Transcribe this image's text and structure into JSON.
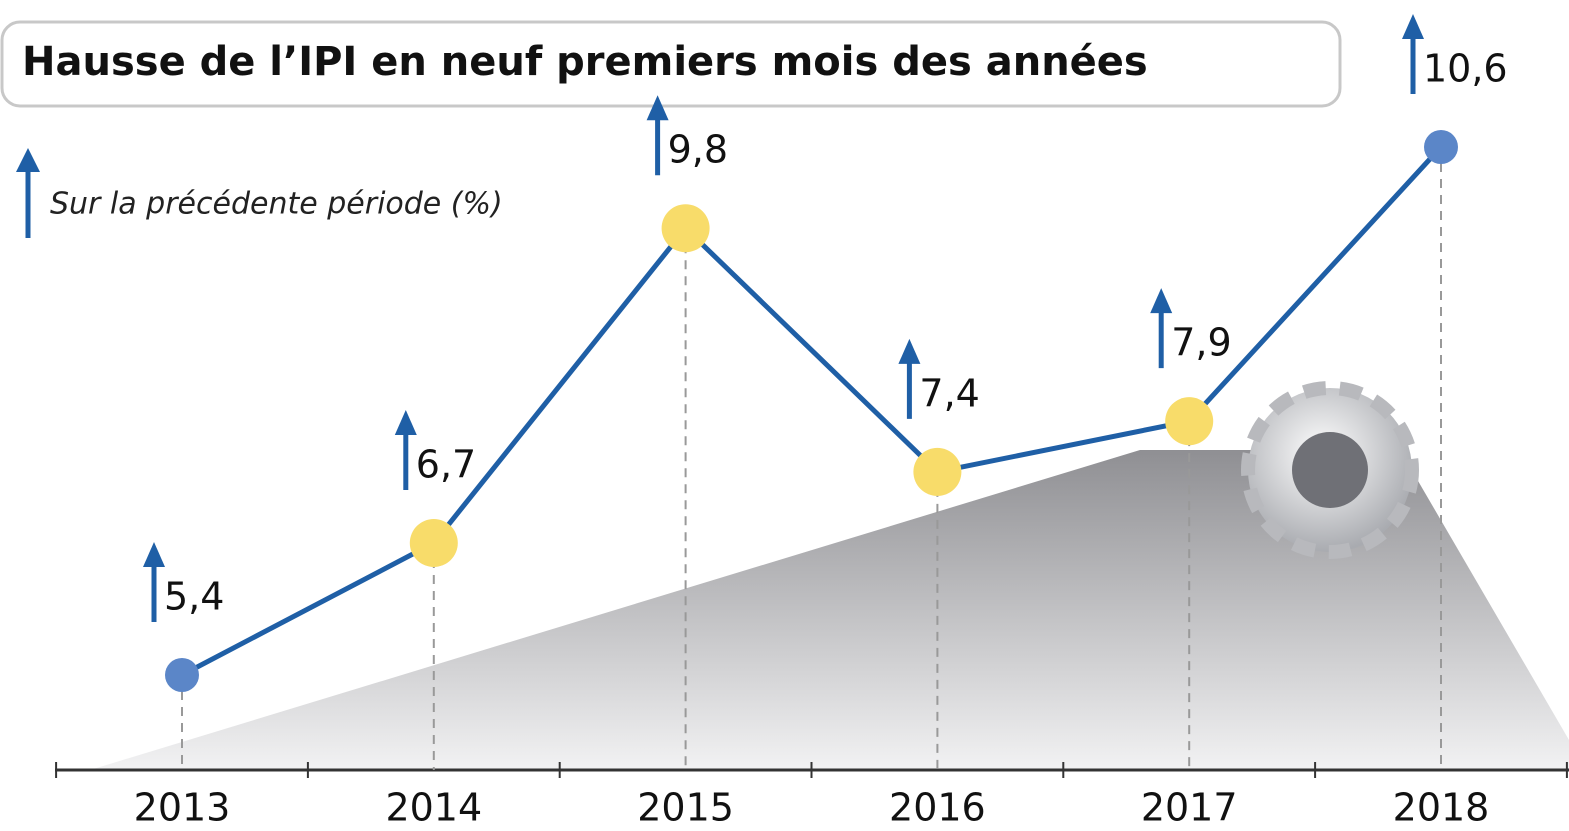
{
  "chart_data": {
    "type": "line",
    "title": "Hausse de l’IPI en neuf premiers mois des années",
    "subtitle": "Sur la précédente période (%)",
    "x": [
      "2013",
      "2014",
      "2015",
      "2016",
      "2017",
      "2018"
    ],
    "values": [
      5.4,
      6.7,
      9.8,
      7.4,
      7.9,
      10.6
    ],
    "value_labels": [
      "5,4",
      "6,7",
      "9,8",
      "7,4",
      "7,9",
      "10,6"
    ],
    "color": "#1f5fa6",
    "marker_colors": [
      "#5b86c8",
      "#f8dc6a",
      "#f8dc6a",
      "#f8dc6a",
      "#f8dc6a",
      "#5b86c8"
    ]
  }
}
